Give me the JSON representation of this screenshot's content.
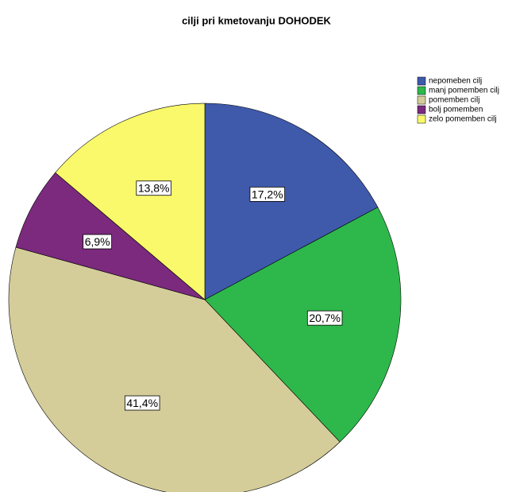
{
  "chart_data": {
    "type": "pie",
    "title": "cilji pri kmetovanju DOHODEK",
    "categories": [
      "nepomeben cilj",
      "manj pomemben cilj",
      "pomemben cilj",
      "bolj pomemben",
      "zelo pomemben cilj"
    ],
    "values": [
      17.2,
      20.7,
      41.4,
      6.9,
      13.8
    ],
    "value_labels": [
      "17,2%",
      "20,7%",
      "41,4%",
      "6,9%",
      "13,8%"
    ],
    "colors": [
      "#3f59ab",
      "#2eb84b",
      "#d4cd9a",
      "#7b2a7e",
      "#f9f96b"
    ],
    "legend": "top-right"
  }
}
